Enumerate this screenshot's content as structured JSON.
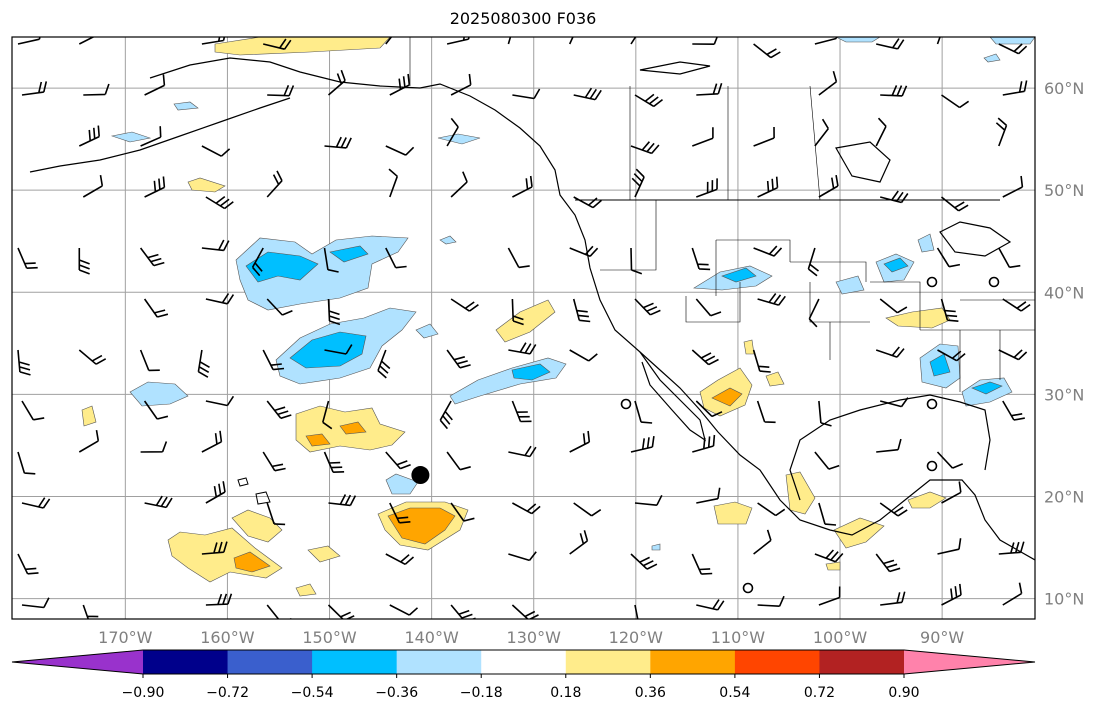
{
  "title": "2025080300 F036",
  "lat_labels": [
    "60°N",
    "50°N",
    "40°N",
    "30°N",
    "20°N",
    "10°N"
  ],
  "lon_labels": [
    "170°W",
    "160°W",
    "150°W",
    "140°W",
    "130°W",
    "120°W",
    "110°W",
    "100°W",
    "90°W"
  ],
  "colorbar": {
    "tick_labels": [
      "−0.90",
      "−0.72",
      "−0.54",
      "−0.36",
      "−0.18",
      "0.18",
      "0.36",
      "0.54",
      "0.72",
      "0.90"
    ],
    "colors": {
      "under": "#9932cc",
      "bins": [
        "#00008b",
        "#3a5fcd",
        "#00bfff",
        "#b0e2ff",
        "#ffffff",
        "#ffec8b",
        "#ffa500",
        "#ff4500",
        "#b22222"
      ],
      "over": "#ff82ab"
    }
  },
  "map": {
    "region": "North Pacific and western North America",
    "extent": {
      "lon": [
        -180,
        -80
      ],
      "lat": [
        8,
        65
      ]
    },
    "marker": {
      "lon": -141.1,
      "lat": 22.1,
      "color": "#000000"
    },
    "colors": {
      "ocean_land": "#ffffff",
      "gridlines": "#a0a0a0",
      "coastline": "#000000",
      "positive_fill": "#ffec8b",
      "positive_mid": "#ffa500",
      "positive_strong": "#ff4500",
      "negative_fill": "#b0e2ff",
      "negative_mid": "#00bfff"
    },
    "wind_barbs": "black"
  }
}
